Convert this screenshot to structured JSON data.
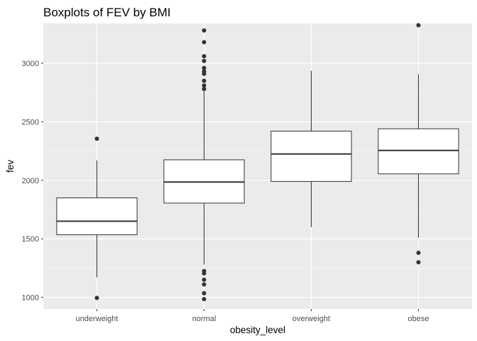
{
  "chart_data": {
    "type": "boxplot",
    "title": "Boxplots of FEV by BMI",
    "xlabel": "obesity_level",
    "ylabel": "fev",
    "categories": [
      "underweight",
      "normal",
      "overweight",
      "obese"
    ],
    "ylim": [
      900,
      3340
    ],
    "yticks": [
      1000,
      1500,
      2000,
      2500,
      3000
    ],
    "grid": true,
    "legend": "none",
    "boxes": [
      {
        "category": "underweight",
        "lower_whisker": 1170,
        "q1": 1535,
        "median": 1650,
        "q3": 1850,
        "upper_whisker": 2170,
        "outliers": [
          2355,
          995
        ]
      },
      {
        "category": "normal",
        "lower_whisker": 1280,
        "q1": 1805,
        "median": 1985,
        "q3": 2175,
        "upper_whisker": 2760,
        "outliers": [
          3280,
          3180,
          3060,
          3020,
          2960,
          2930,
          2910,
          2850,
          2810,
          2780,
          1225,
          1205,
          1150,
          1110,
          1035,
          985
        ]
      },
      {
        "category": "overweight",
        "lower_whisker": 1600,
        "q1": 1990,
        "median": 2225,
        "q3": 2420,
        "upper_whisker": 2935,
        "outliers": []
      },
      {
        "category": "obese",
        "lower_whisker": 1510,
        "q1": 2055,
        "median": 2255,
        "q3": 2440,
        "upper_whisker": 2905,
        "outliers": [
          3325,
          1380,
          1300
        ]
      }
    ],
    "colors": {
      "panel": "#EBEBEB",
      "grid_major": "#FFFFFF",
      "box_fill": "#FFFFFF",
      "box_line": "#333333",
      "outlier": "#333333"
    }
  }
}
